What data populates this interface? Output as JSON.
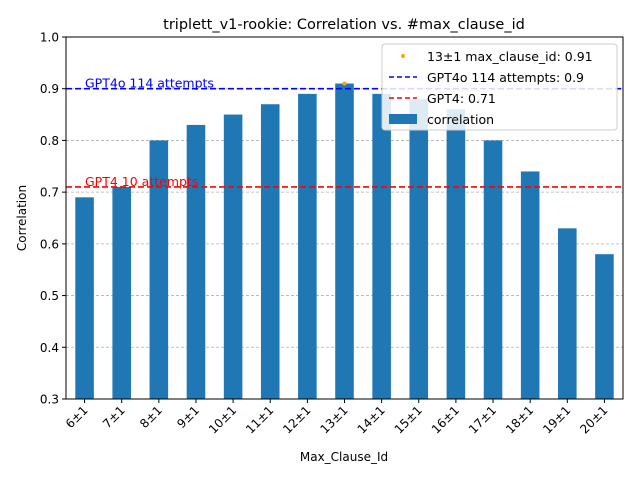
{
  "chart_data": {
    "type": "bar",
    "title": "triplett_v1-rookie: Correlation vs. #max_clause_id",
    "xlabel": "Max_Clause_Id",
    "ylabel": "Correlation",
    "ylim": [
      0.3,
      1.0
    ],
    "yticks": [
      "0.3",
      "0.4",
      "0.5",
      "0.6",
      "0.7",
      "0.8",
      "0.9",
      "1.0"
    ],
    "grid": "horizontal dashed",
    "legend_position": "top-right",
    "categories": [
      "6±1",
      "7±1",
      "8±1",
      "9±1",
      "10±1",
      "11±1",
      "12±1",
      "13±1",
      "14±1",
      "15±1",
      "16±1",
      "17±1",
      "18±1",
      "19±1",
      "20±1"
    ],
    "series": [
      {
        "name": "correlation",
        "color": "#1f77b4",
        "values": [
          0.69,
          0.71,
          0.8,
          0.83,
          0.85,
          0.87,
          0.89,
          0.91,
          0.89,
          0.88,
          0.86,
          0.8,
          0.74,
          0.63,
          0.58
        ]
      }
    ],
    "best_point": {
      "label": "13±1 max_clause_id: 0.91",
      "category": "13±1",
      "value": 0.91,
      "color": "#ffa500"
    },
    "reference_lines": [
      {
        "legend": "GPT4o 114 attempts: 0.9",
        "annotation": "GPT4o 114 attempts",
        "value": 0.9,
        "color": "#0000ff"
      },
      {
        "legend": "GPT4: 0.71",
        "annotation": "GPT4 10 attempts",
        "value": 0.71,
        "color": "#ff0000"
      }
    ],
    "legend_entries": [
      "13±1 max_clause_id: 0.91",
      "GPT4o 114 attempts: 0.9",
      "GPT4: 0.71",
      "correlation"
    ]
  }
}
